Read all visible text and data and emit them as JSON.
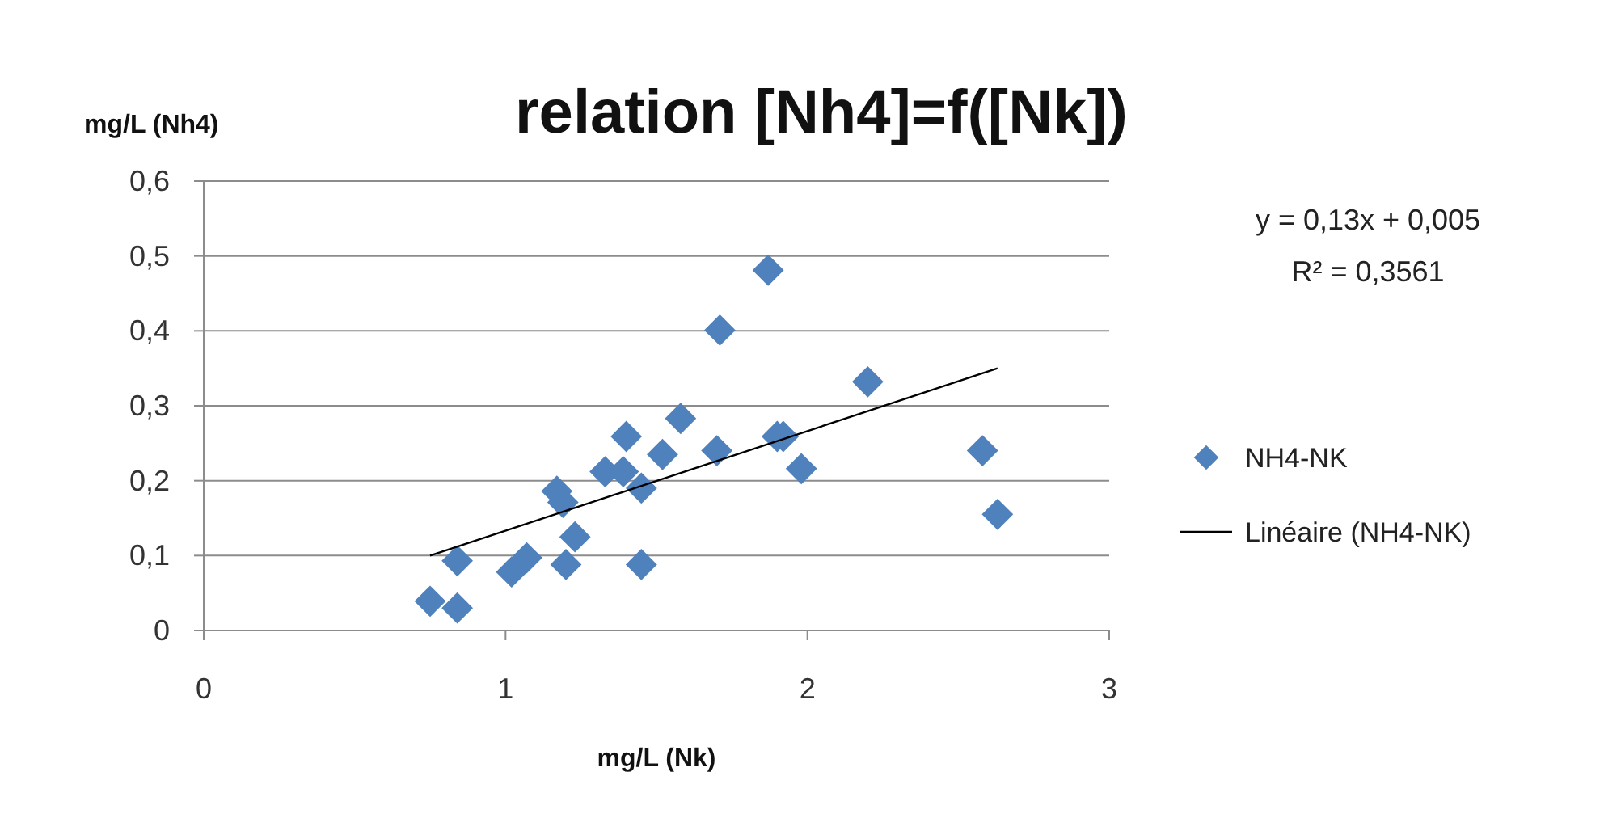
{
  "chart_data": {
    "type": "scatter",
    "title": "relation [Nh4]=f([Nk])",
    "xlabel": "mg/L (Nk)",
    "ylabel": "mg/L (Nh4)",
    "annotations": [
      "y = 0,13x + 0,005",
      "R² = 0,3561"
    ],
    "xlim": [
      0,
      3
    ],
    "xticks": [
      0,
      1,
      2,
      3
    ],
    "ylim": [
      0,
      0.6
    ],
    "yticks": [
      {
        "value": 0,
        "label": "0"
      },
      {
        "value": 0.1,
        "label": "0,1"
      },
      {
        "value": 0.2,
        "label": "0,2"
      },
      {
        "value": 0.3,
        "label": "0,3"
      },
      {
        "value": 0.4,
        "label": "0,4"
      },
      {
        "value": 0.5,
        "label": "0,5"
      },
      {
        "value": 0.6,
        "label": "0,6"
      }
    ],
    "grid": "y",
    "legend": "right",
    "series": [
      {
        "name": "NH4-NK",
        "marker": "diamond",
        "color": "#4f81bd",
        "x": [
          0.75,
          0.84,
          0.84,
          1.02,
          1.07,
          1.17,
          1.19,
          1.2,
          1.23,
          1.33,
          1.4,
          1.39,
          1.45,
          1.45,
          1.52,
          1.58,
          1.7,
          1.71,
          1.87,
          1.9,
          1.92,
          1.98,
          2.2,
          2.58,
          2.63
        ],
        "values": [
          0.039,
          0.093,
          0.03,
          0.078,
          0.097,
          0.186,
          0.171,
          0.088,
          0.125,
          0.212,
          0.259,
          0.212,
          0.19,
          0.088,
          0.235,
          0.283,
          0.24,
          0.401,
          0.481,
          0.259,
          0.259,
          0.216,
          0.332,
          0.24,
          0.155
        ]
      },
      {
        "name": "Linéaire (NH4-NK)",
        "type": "line",
        "marker": "none",
        "line_style": "solid",
        "color": "#000000",
        "x": [
          0.75,
          2.63
        ],
        "values": [
          0.1,
          0.35
        ]
      }
    ]
  }
}
